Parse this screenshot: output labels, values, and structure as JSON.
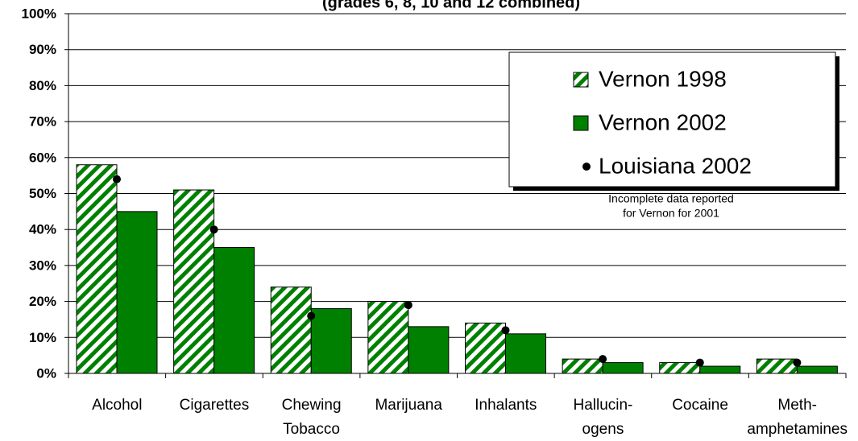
{
  "chart_data": {
    "type": "bar",
    "title": "(grades 6, 8, 10 and 12 combined)",
    "categories": [
      "Alcohol",
      "Cigarettes",
      "Chewing\nTobacco",
      "Marijuana",
      "Inhalants",
      "Hallucin-\nogens",
      "Cocaine",
      "Meth-\namphetamines"
    ],
    "series": [
      {
        "name": "Vernon 1998",
        "color": "#008000",
        "pattern": "hatched",
        "values": [
          58,
          51,
          24,
          20,
          14,
          4,
          3,
          4
        ]
      },
      {
        "name": "Vernon 2002",
        "color": "#008000",
        "values": [
          45,
          35,
          18,
          13,
          11,
          3,
          2,
          2
        ]
      },
      {
        "name": "Louisiana 2002",
        "color": "#000000",
        "mark": "point",
        "values": [
          54,
          40,
          16,
          19,
          12,
          4,
          3,
          3
        ]
      }
    ],
    "annotations": [
      "Incomplete data reported",
      "for Vernon for 2001"
    ],
    "ylim": [
      0,
      100
    ],
    "yticks": [
      {
        "value": 0,
        "label": "0%"
      },
      {
        "value": 10,
        "label": "10%"
      },
      {
        "value": 20,
        "label": "20%"
      },
      {
        "value": 30,
        "label": "30%"
      },
      {
        "value": 40,
        "label": "40%"
      },
      {
        "value": 50,
        "label": "50%"
      },
      {
        "value": 60,
        "label": "60%"
      },
      {
        "value": 70,
        "label": "70%"
      },
      {
        "value": 80,
        "label": "80%"
      },
      {
        "value": 90,
        "label": "90%"
      },
      {
        "value": 100,
        "label": "100%"
      }
    ],
    "grid": true,
    "legend": "upper right"
  }
}
